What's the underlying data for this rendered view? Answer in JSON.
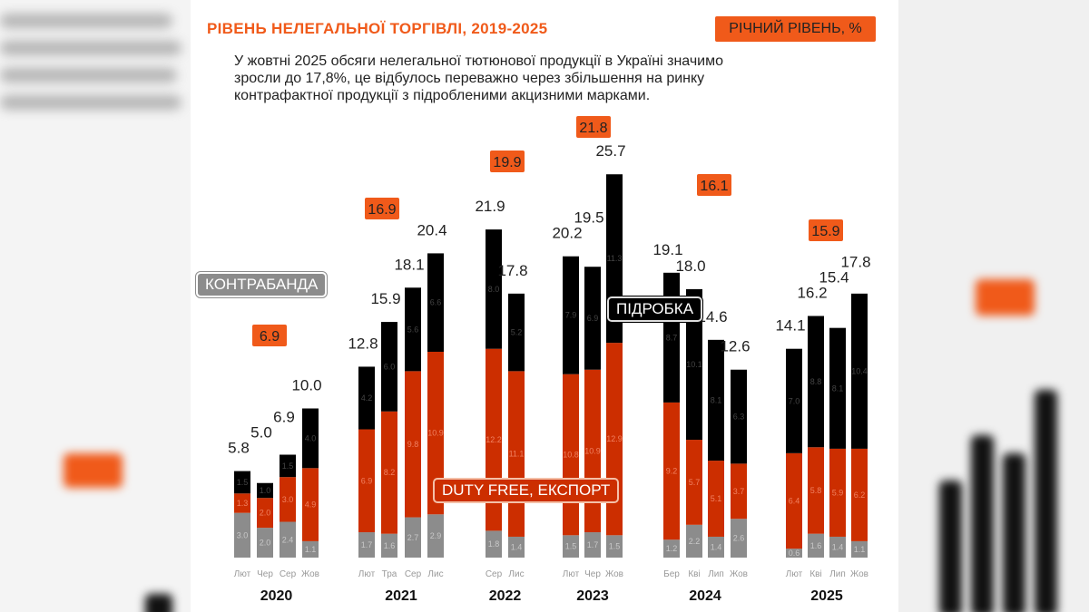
{
  "title": "РІВЕНЬ НЕЛЕГАЛЬНОЇ ТОРГІВЛІ, 2019-2025",
  "annual_badge_label": "РІЧНИЙ РІВЕНЬ, %",
  "description": "У жовтні 2025 обсяги нелегальної тютюнової продукції в Україні значимо зросли до 17,8%, це відбулось переважно через збільшення на ринку контрафактної продукції з підробленими акцизними марками.",
  "legend": {
    "contraband": "КОНТРАБАНДА",
    "duty_free": "DUTY FREE, ЕКСПОРТ",
    "counterfeit": "ПІДРОБКА"
  },
  "colors": {
    "accent": "#f05a1a",
    "contraband": "#8c8c8c",
    "duty_free": "#cc2e00",
    "counterfeit": "#000000"
  },
  "chart_data": {
    "type": "bar",
    "stacked": true,
    "ylabel": "",
    "series_order": [
      "contraband",
      "duty_free",
      "counterfeit"
    ],
    "groups": [
      {
        "year": "2020",
        "annual": "6.9",
        "bars": [
          {
            "month": "Лют",
            "total": "5.8",
            "contraband": 3.0,
            "duty_free": 1.3,
            "counterfeit": 1.5
          },
          {
            "month": "Чер",
            "total": "5.0",
            "contraband": 2.0,
            "duty_free": 2.0,
            "counterfeit": 1.0
          },
          {
            "month": "Сер",
            "total": "6.9",
            "contraband": 2.4,
            "duty_free": 3.0,
            "counterfeit": 1.5
          },
          {
            "month": "Жов",
            "total": "10.0",
            "contraband": 1.1,
            "duty_free": 4.9,
            "counterfeit": 4.0
          }
        ]
      },
      {
        "year": "2021",
        "annual": "16.9",
        "bars": [
          {
            "month": "Лют",
            "total": "12.8",
            "contraband": 1.7,
            "duty_free": 6.9,
            "counterfeit": 4.2
          },
          {
            "month": "Тра",
            "total": "15.9",
            "contraband": 1.6,
            "duty_free": 8.2,
            "counterfeit": 6.0
          },
          {
            "month": "Сер",
            "total": "18.1",
            "contraband": 2.7,
            "duty_free": 9.8,
            "counterfeit": 5.6
          },
          {
            "month": "Лис",
            "total": "20.4",
            "contraband": 2.9,
            "duty_free": 10.9,
            "counterfeit": 6.6
          }
        ]
      },
      {
        "year": "2022",
        "annual": "19.9",
        "bars": [
          {
            "month": "Сер",
            "total": "21.9",
            "contraband": 1.8,
            "duty_free": 12.2,
            "counterfeit": 8.0
          },
          {
            "month": "Лис",
            "total": "17.8",
            "contraband": 1.4,
            "duty_free": 11.1,
            "counterfeit": 5.2
          }
        ]
      },
      {
        "year": "2023",
        "annual": "21.8",
        "bars": [
          {
            "month": "Лют",
            "total": "20.2",
            "contraband": 1.5,
            "duty_free": 10.8,
            "counterfeit": 7.9
          },
          {
            "month": "Чер",
            "total": "19.5",
            "contraband": 1.7,
            "duty_free": 10.9,
            "counterfeit": 6.9
          },
          {
            "month": "Жов",
            "total": "25.7",
            "contraband": 1.5,
            "duty_free": 12.9,
            "counterfeit": 11.3
          }
        ]
      },
      {
        "year": "2024",
        "annual": "16.1",
        "bars": [
          {
            "month": "Бер",
            "total": "19.1",
            "contraband": 1.2,
            "duty_free": 9.2,
            "counterfeit": 8.7
          },
          {
            "month": "Кві",
            "total": "18.0",
            "contraband": 2.2,
            "duty_free": 5.7,
            "counterfeit": 10.1
          },
          {
            "month": "Лип",
            "total": "14.6",
            "contraband": 1.4,
            "duty_free": 5.1,
            "counterfeit": 8.1
          },
          {
            "month": "Жов",
            "total": "12.6",
            "contraband": 2.6,
            "duty_free": 3.7,
            "counterfeit": 6.3
          }
        ]
      },
      {
        "year": "2025",
        "annual": "15.9",
        "bars": [
          {
            "month": "Лют",
            "total": "14.1",
            "contraband": 0.6,
            "duty_free": 6.4,
            "counterfeit": 7.0
          },
          {
            "month": "Кві",
            "total": "16.2",
            "contraband": 1.6,
            "duty_free": 5.8,
            "counterfeit": 8.8
          },
          {
            "month": "Лип",
            "total": "15.4",
            "contraband": 1.4,
            "duty_free": 5.9,
            "counterfeit": 8.1
          },
          {
            "month": "Жов",
            "total": "17.8",
            "contraband": 1.1,
            "duty_free": 6.2,
            "counterfeit": 10.4
          }
        ]
      }
    ]
  }
}
